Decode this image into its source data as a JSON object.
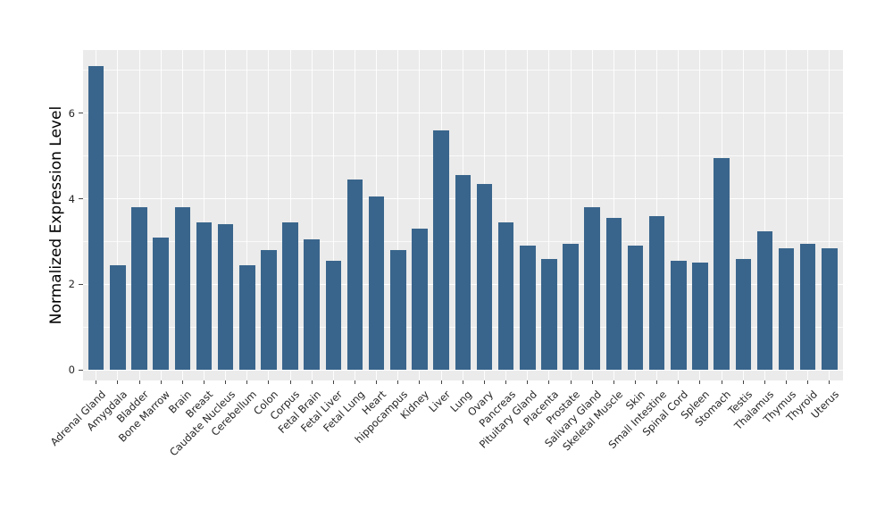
{
  "chart_data": {
    "type": "bar",
    "title": "",
    "xlabel": "",
    "ylabel": "Normalized Expression Level",
    "legend": false,
    "grid": true,
    "categories": [
      "Adrenal Gland",
      "Amygdala",
      "Bladder",
      "Bone Marrow",
      "Brain",
      "Breast",
      "Caudate Nucleus",
      "Cerebellum",
      "Colon",
      "Corpus",
      "Fetal Brain",
      "Fetal Liver",
      "Fetal Lung",
      "Heart",
      "hippocampus",
      "Kidney",
      "Liver",
      "Lung",
      "Ovary",
      "Pancreas",
      "Pituitary Gland",
      "Placenta",
      "Prostate",
      "Salivary Gland",
      "Skeletal Muscle",
      "Skin",
      "Small Intestine",
      "Spinal Cord",
      "Spleen",
      "Stomach",
      "Testis",
      "Thalamus",
      "Thymus",
      "Thyroid",
      "Uterus"
    ],
    "values": [
      7.1,
      2.45,
      3.8,
      3.1,
      3.8,
      3.45,
      3.4,
      2.45,
      2.8,
      3.45,
      3.05,
      2.55,
      4.45,
      4.05,
      2.8,
      3.3,
      5.6,
      4.55,
      4.35,
      3.45,
      2.9,
      2.6,
      2.95,
      3.8,
      3.55,
      2.9,
      3.6,
      2.55,
      2.5,
      4.95,
      2.6,
      3.25,
      2.85,
      2.95,
      2.85
    ],
    "ylim": [
      -0.23,
      7.47
    ],
    "yticks_major": [
      0,
      2,
      4,
      6
    ],
    "yticks_minor": [
      1,
      3,
      5,
      7
    ],
    "colors": {
      "bar": "#39658C",
      "panel_background": "#EBEBEB",
      "gridline": "#FFFFFF",
      "tick_mark": "#444444",
      "tick_text": "#262626",
      "axis_label_text": "#000000",
      "figure_background": "#FFFFFF"
    }
  }
}
